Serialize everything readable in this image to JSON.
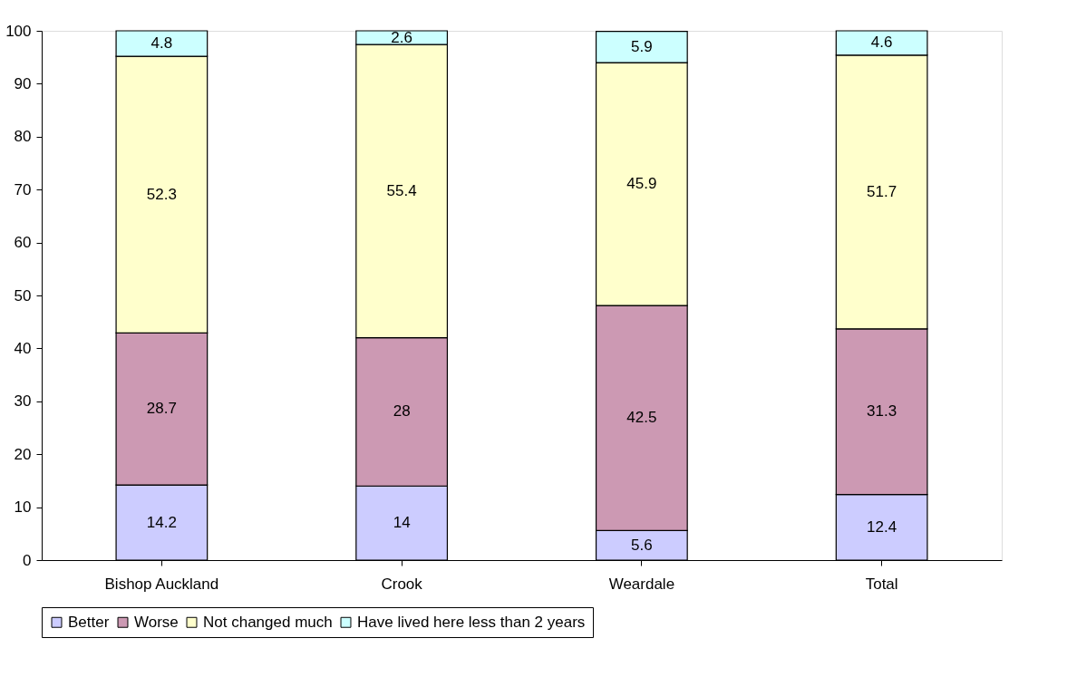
{
  "chart_data": {
    "type": "bar",
    "stacked": true,
    "categories": [
      "Bishop Auckland",
      "Crook",
      "Weardale",
      "Total"
    ],
    "series": [
      {
        "name": "Better",
        "color": "#ccccff",
        "values": [
          14.2,
          14,
          5.6,
          12.4
        ]
      },
      {
        "name": "Worse",
        "color": "#cc99b3",
        "values": [
          28.7,
          28,
          42.5,
          31.3
        ]
      },
      {
        "name": "Not changed much",
        "color": "#ffffcc",
        "values": [
          52.3,
          55.4,
          45.9,
          51.7
        ]
      },
      {
        "name": "Have lived here less than 2 years",
        "color": "#ccffff",
        "values": [
          4.8,
          2.6,
          5.9,
          4.6
        ]
      }
    ],
    "ylim": [
      0,
      100
    ],
    "yticks": [
      0,
      10,
      20,
      30,
      40,
      50,
      60,
      70,
      80,
      90,
      100
    ],
    "data_labels": true,
    "legend": "bottom",
    "grid": false
  }
}
